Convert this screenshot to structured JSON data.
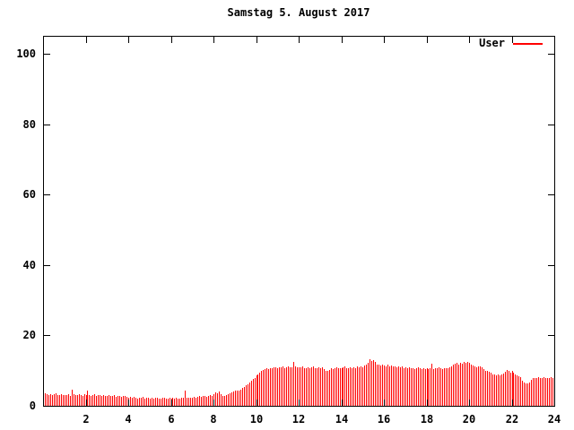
{
  "chart_data": {
    "type": "bar",
    "title": "Samstag 5. August 2017",
    "legend_position": "top-right-inside",
    "grid": false,
    "background_color": "#ffffff",
    "frame_color": "#000000",
    "x_unit": "hour of day",
    "x_range": [
      0,
      24
    ],
    "ylim": [
      0,
      105
    ],
    "xticks": [
      2,
      4,
      6,
      8,
      10,
      12,
      14,
      16,
      18,
      20,
      22,
      24
    ],
    "yticks": [
      0,
      20,
      40,
      60,
      80,
      100
    ],
    "sample_interval_minutes": 5,
    "series": [
      {
        "name": "User",
        "color": "#ff0000",
        "values": [
          4.0,
          3.6,
          3.3,
          3.1,
          3.3,
          3.0,
          3.2,
          3.5,
          3.0,
          3.1,
          3.4,
          3.0,
          3.1,
          3.0,
          3.3,
          2.9,
          4.6,
          3.2,
          3.0,
          3.1,
          3.3,
          3.0,
          2.9,
          3.2,
          3.0,
          4.2,
          3.1,
          2.9,
          3.0,
          3.2,
          2.8,
          3.0,
          3.1,
          2.9,
          3.0,
          2.8,
          2.9,
          3.0,
          2.7,
          2.8,
          3.0,
          2.6,
          2.8,
          2.9,
          2.6,
          2.7,
          2.9,
          2.5,
          2.4,
          2.6,
          2.2,
          2.5,
          2.3,
          2.1,
          2.4,
          2.2,
          2.5,
          2.1,
          2.3,
          2.2,
          2.1,
          2.3,
          2.0,
          2.2,
          2.4,
          2.1,
          2.0,
          2.2,
          2.3,
          2.0,
          2.1,
          2.2,
          2.0,
          2.2,
          2.1,
          2.3,
          2.0,
          2.1,
          2.4,
          2.2,
          4.4,
          2.3,
          2.2,
          2.4,
          2.3,
          2.5,
          2.4,
          2.6,
          2.8,
          2.5,
          2.7,
          2.9,
          2.6,
          2.8,
          3.0,
          2.9,
          3.4,
          3.8,
          3.6,
          4.0,
          3.3,
          2.9,
          2.8,
          3.0,
          3.2,
          3.5,
          3.8,
          4.0,
          4.2,
          4.4,
          4.3,
          4.6,
          5.0,
          5.4,
          5.8,
          6.2,
          6.6,
          7.0,
          7.6,
          8.0,
          8.6,
          9.0,
          9.4,
          9.8,
          10.2,
          10.4,
          10.6,
          10.4,
          10.8,
          10.6,
          10.9,
          11.0,
          10.8,
          11.0,
          10.9,
          11.2,
          10.8,
          11.0,
          11.1,
          10.9,
          11.0,
          12.4,
          11.1,
          11.0,
          11.0,
          10.9,
          11.1,
          10.6,
          10.8,
          11.0,
          10.7,
          10.9,
          11.2,
          10.8,
          10.6,
          10.9,
          10.7,
          10.9,
          10.5,
          9.8,
          9.9,
          10.2,
          10.6,
          10.4,
          10.7,
          10.9,
          10.6,
          10.8,
          10.6,
          10.9,
          11.1,
          10.8,
          10.6,
          10.9,
          10.7,
          11.0,
          10.8,
          11.1,
          10.9,
          11.2,
          11.0,
          11.4,
          11.8,
          12.2,
          13.2,
          12.8,
          13.0,
          12.4,
          11.8,
          11.6,
          11.4,
          11.6,
          11.5,
          11.3,
          11.6,
          11.2,
          11.4,
          11.1,
          11.3,
          11.0,
          11.2,
          10.9,
          11.1,
          10.8,
          10.9,
          10.7,
          11.0,
          10.6,
          10.8,
          10.5,
          10.7,
          10.9,
          10.6,
          10.4,
          10.7,
          10.5,
          10.6,
          10.4,
          10.7,
          11.9,
          10.5,
          10.8,
          10.6,
          10.9,
          10.7,
          10.5,
          10.8,
          10.6,
          10.8,
          11.0,
          11.3,
          11.6,
          12.0,
          12.3,
          11.8,
          12.1,
          11.9,
          12.4,
          12.2,
          12.5,
          12.3,
          11.6,
          11.4,
          11.2,
          11.0,
          11.3,
          11.1,
          10.9,
          10.4,
          10.0,
          9.8,
          9.6,
          9.4,
          9.0,
          8.8,
          8.7,
          8.9,
          8.6,
          8.8,
          9.2,
          9.6,
          10.2,
          9.8,
          9.5,
          9.8,
          9.4,
          9.0,
          8.6,
          8.4,
          8.2,
          7.0,
          6.5,
          6.3,
          6.4,
          6.6,
          7.4,
          7.8,
          8.0,
          7.9,
          8.1,
          8.0,
          7.9,
          8.1,
          8.0,
          7.9,
          8.0,
          8.1,
          8.0
        ]
      }
    ]
  }
}
